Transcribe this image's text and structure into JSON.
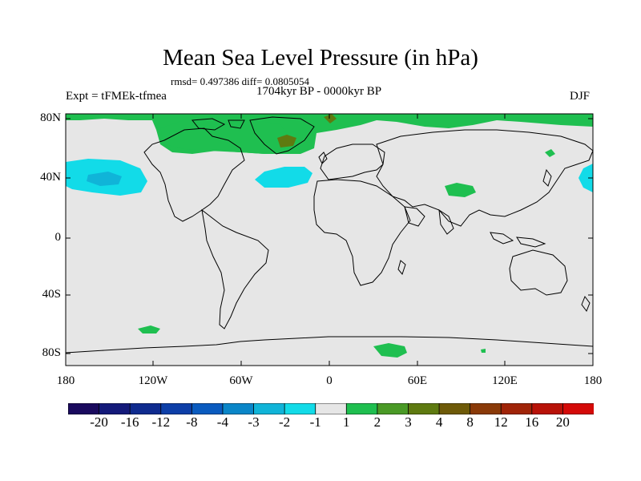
{
  "figure": {
    "title": "Mean Sea Level Pressure (in hPa)",
    "stats": "rmsd= 0.497386 diff= 0.0805054",
    "period": "1704kyr BP - 0000kyr BP",
    "experiment": "Expt = tFMEk-tfmea",
    "season": "DJF"
  },
  "axes": {
    "y_labels": [
      "80N",
      "40N",
      "0",
      "40S",
      "80S"
    ],
    "x_labels": [
      "180",
      "120W",
      "60W",
      "0",
      "60E",
      "120E",
      "180"
    ]
  },
  "colorbar": {
    "labels": [
      "-20",
      "-16",
      "-12",
      "-8",
      "-4",
      "-3",
      "-2",
      "-1",
      "1",
      "2",
      "3",
      "4",
      "8",
      "12",
      "16",
      "20"
    ],
    "colors": [
      "#1a0a5e",
      "#141a7a",
      "#0f2b8f",
      "#0d3fa8",
      "#0a5bbf",
      "#0a86c8",
      "#10b4d8",
      "#12dbe8",
      "#e6e6e6",
      "#1fbf50",
      "#4a9a26",
      "#5e7a10",
      "#6e5a08",
      "#8a3a08",
      "#a02408",
      "#b81208",
      "#d40a08"
    ]
  },
  "colors": {
    "land_background": "#e6e6e6",
    "coast": "#000000"
  }
}
